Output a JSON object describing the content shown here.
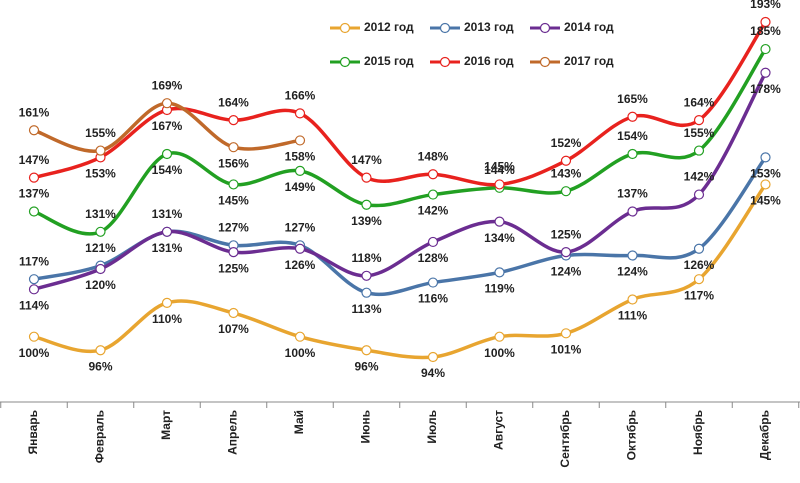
{
  "chart_data": {
    "type": "line",
    "categories": [
      "Январь",
      "Февраль",
      "Март",
      "Апрель",
      "Май",
      "Июнь",
      "Июль",
      "Август",
      "Сентябрь",
      "Октябрь",
      "Ноябрь",
      "Декабрь"
    ],
    "series": [
      {
        "name": "2012 год",
        "color": "#E8A530",
        "values": [
          100,
          96,
          110,
          107,
          100,
          96,
          94,
          100,
          101,
          111,
          117,
          145
        ],
        "value_labels": [
          "100%",
          "96%",
          "110%",
          "107%",
          "100%",
          "96%",
          "94%",
          "100%",
          "101%",
          "111%",
          "117%",
          "145%"
        ]
      },
      {
        "name": "2013 год",
        "color": "#4A75A8",
        "values": [
          117,
          121,
          131,
          127,
          127,
          113,
          116,
          119,
          124,
          124,
          126,
          153
        ],
        "value_labels": [
          "117%",
          "121%",
          "131%",
          "127%",
          "127%",
          "113%",
          "116%",
          "119%",
          "124%",
          "124%",
          "126%",
          "153%"
        ]
      },
      {
        "name": "2014 год",
        "color": "#6B2D91",
        "values": [
          114,
          120,
          131,
          125,
          126,
          118,
          128,
          134,
          125,
          137,
          142,
          178
        ],
        "value_labels": [
          "114%",
          "120%",
          "131%",
          "125%",
          "126%",
          "118%",
          "128%",
          "134%",
          "125%",
          "137%",
          "142%",
          "178%"
        ]
      },
      {
        "name": "2015 год",
        "color": "#22A022",
        "values": [
          137,
          131,
          154,
          145,
          149,
          139,
          142,
          144,
          143,
          154,
          155,
          185
        ],
        "value_labels": [
          "137%",
          "131%",
          "154%",
          "145%",
          "149%",
          "139%",
          "142%",
          "144%",
          "143%",
          "154%",
          "155%",
          "185%"
        ]
      },
      {
        "name": "2016 год",
        "color": "#E8221E",
        "values": [
          147,
          153,
          167,
          164,
          166,
          147,
          148,
          145,
          152,
          165,
          164,
          193
        ],
        "value_labels": [
          "147%",
          "153%",
          "167%",
          "164%",
          "166%",
          "147%",
          "148%",
          "145%",
          "152%",
          "165%",
          "164%",
          "193%"
        ]
      },
      {
        "name": "2017 год",
        "color": "#C0692A",
        "values": [
          161,
          155,
          169,
          156,
          158,
          null,
          null,
          null,
          null,
          null,
          null,
          null
        ],
        "value_labels": [
          "161%",
          "155%",
          "169%",
          "156%",
          "158%",
          null,
          null,
          null,
          null,
          null,
          null,
          null
        ]
      }
    ]
  }
}
